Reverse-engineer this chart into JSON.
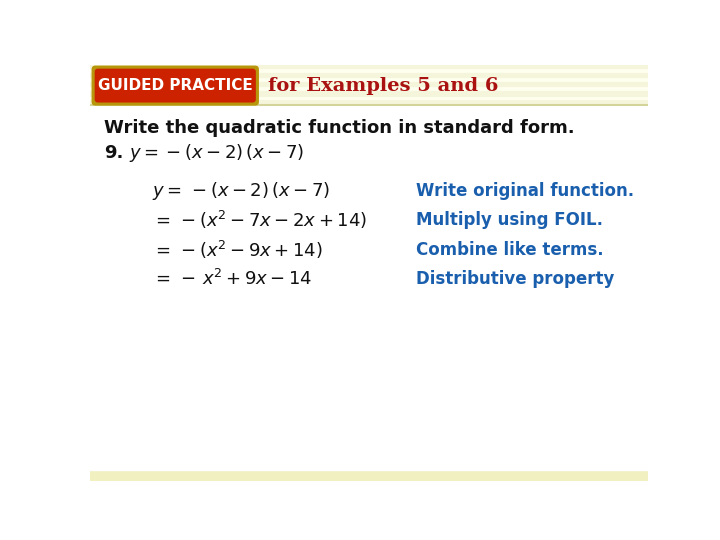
{
  "bg_white": "#ffffff",
  "bg_cream": "#fffff0",
  "header_bg": "#fffff0",
  "stripe_light": "#f5f5dc",
  "stripe_dark": "#eeeed8",
  "bottom_stripe": "#f5f5c8",
  "guided_practice_bg": "#cc2200",
  "guided_practice_border": "#b8960c",
  "guided_practice_text": "GUIDED PRACTICE",
  "guided_practice_text_color": "#ffffff",
  "header_title": "for Examples 5 and 6",
  "header_title_color": "#aa1111",
  "instruction_text": "Write the quadratic function in standard form.",
  "instruction_color": "#111111",
  "problem_color": "#111111",
  "blue_color": "#1a5fad",
  "eq_color": "#111111",
  "header_line_color": "#d4d49a",
  "bottom_band_color": "#f0f0c0"
}
